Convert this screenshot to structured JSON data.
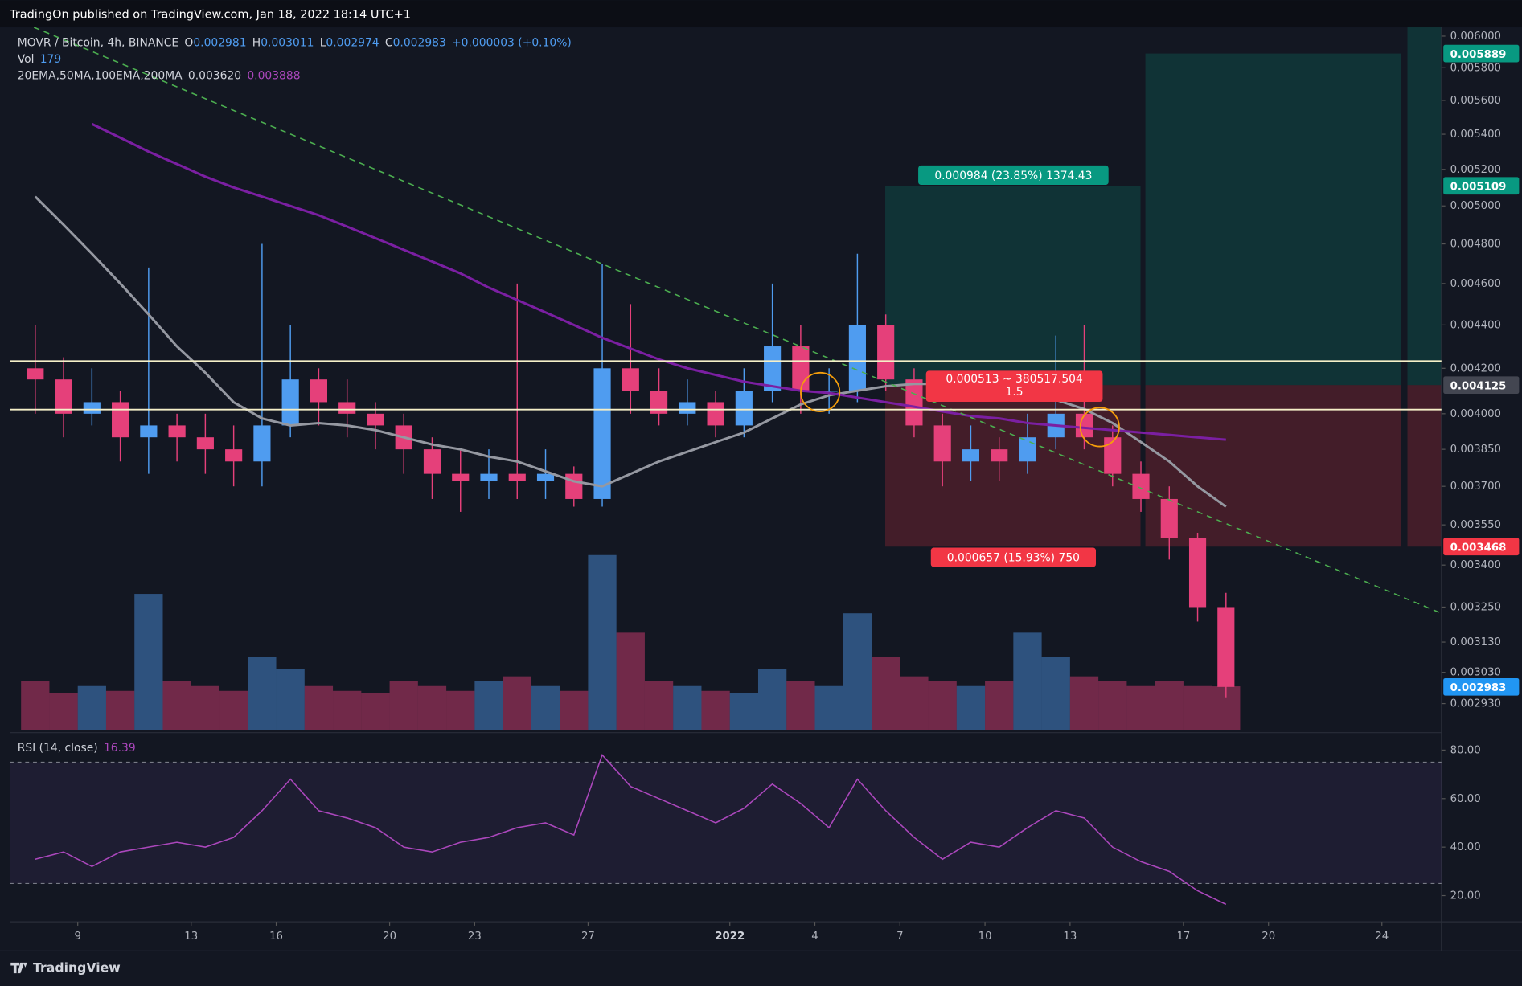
{
  "header": {
    "publisher": "TradingOn published on TradingView.com, Jan 18, 2022 18:14 UTC+1"
  },
  "legend": {
    "symbol": "MOVR / Bitcoin, 4h, BINANCE",
    "ohlc": [
      {
        "key": "O",
        "value": "0.002981"
      },
      {
        "key": "H",
        "value": "0.003011"
      },
      {
        "key": "L",
        "value": "0.002974"
      },
      {
        "key": "C",
        "value": "0.002983"
      }
    ],
    "change": "+0.000003 (+0.10%)",
    "vol_label": "Vol",
    "vol": "179",
    "ma_label": "20EMA,50MA,100EMA,200MA",
    "ma_values": [
      "0.003620",
      "0.003888"
    ],
    "rsi_label": "RSI (14, close)",
    "rsi_value": "16.39"
  },
  "footer": {
    "brand": "TradingView"
  },
  "chart_data": {
    "type": "candlestick",
    "log_scale": true,
    "up_color": "#4f9cf0",
    "down_color": "#e5407a",
    "x": [
      7,
      8,
      9,
      10,
      11,
      12,
      13,
      14,
      15,
      16,
      17,
      18,
      19,
      20,
      21,
      22,
      23,
      24,
      25,
      26,
      27,
      28,
      29,
      30,
      31,
      32,
      33,
      34,
      35,
      36,
      37,
      38,
      39,
      40,
      41,
      42,
      43,
      44,
      45,
      46,
      47,
      48,
      49
    ],
    "candles": [
      [
        0.0042,
        0.0044,
        0.004,
        0.00415
      ],
      [
        0.00415,
        0.00425,
        0.0039,
        0.004
      ],
      [
        0.004,
        0.0042,
        0.00395,
        0.00405
      ],
      [
        0.00405,
        0.0041,
        0.0038,
        0.0039
      ],
      [
        0.0039,
        0.00468,
        0.00375,
        0.00395
      ],
      [
        0.00395,
        0.004,
        0.0038,
        0.0039
      ],
      [
        0.0039,
        0.004,
        0.00375,
        0.00385
      ],
      [
        0.00385,
        0.00395,
        0.0037,
        0.0038
      ],
      [
        0.0038,
        0.0048,
        0.0037,
        0.00395
      ],
      [
        0.00395,
        0.0044,
        0.0039,
        0.00415
      ],
      [
        0.00415,
        0.0042,
        0.00395,
        0.00405
      ],
      [
        0.00405,
        0.00415,
        0.0039,
        0.004
      ],
      [
        0.004,
        0.00405,
        0.00385,
        0.00395
      ],
      [
        0.00395,
        0.004,
        0.00375,
        0.00385
      ],
      [
        0.00385,
        0.0039,
        0.00365,
        0.00375
      ],
      [
        0.00375,
        0.00385,
        0.0036,
        0.00372
      ],
      [
        0.00372,
        0.00385,
        0.00365,
        0.00375
      ],
      [
        0.00375,
        0.0046,
        0.00365,
        0.00372
      ],
      [
        0.00372,
        0.00385,
        0.00365,
        0.00375
      ],
      [
        0.00375,
        0.00378,
        0.00362,
        0.00365
      ],
      [
        0.00365,
        0.0047,
        0.00362,
        0.0042
      ],
      [
        0.0042,
        0.0045,
        0.004,
        0.0041
      ],
      [
        0.0041,
        0.0042,
        0.00395,
        0.004
      ],
      [
        0.004,
        0.00415,
        0.00395,
        0.00405
      ],
      [
        0.00405,
        0.0041,
        0.0039,
        0.00395
      ],
      [
        0.00395,
        0.0042,
        0.0039,
        0.0041
      ],
      [
        0.0041,
        0.0046,
        0.00405,
        0.0043
      ],
      [
        0.0043,
        0.0044,
        0.004,
        0.0041
      ],
      [
        0.0041,
        0.0042,
        0.004,
        0.0041
      ],
      [
        0.0041,
        0.00475,
        0.00405,
        0.0044
      ],
      [
        0.0044,
        0.00445,
        0.0041,
        0.00415
      ],
      [
        0.00415,
        0.0042,
        0.0039,
        0.00395
      ],
      [
        0.00395,
        0.004,
        0.0037,
        0.0038
      ],
      [
        0.0038,
        0.00395,
        0.00372,
        0.00385
      ],
      [
        0.00385,
        0.0039,
        0.00372,
        0.0038
      ],
      [
        0.0038,
        0.004,
        0.00375,
        0.0039
      ],
      [
        0.0039,
        0.00435,
        0.00385,
        0.004
      ],
      [
        0.004,
        0.0044,
        0.00385,
        0.0039
      ],
      [
        0.0039,
        0.00395,
        0.0037,
        0.00375
      ],
      [
        0.00375,
        0.0038,
        0.0036,
        0.00365
      ],
      [
        0.00365,
        0.0037,
        0.00342,
        0.0035
      ],
      [
        0.0035,
        0.00352,
        0.0032,
        0.00325
      ],
      [
        0.00325,
        0.0033,
        0.00295,
        0.002983
      ]
    ],
    "volume": [
      200,
      150,
      180,
      160,
      560,
      200,
      180,
      160,
      300,
      250,
      180,
      160,
      150,
      200,
      180,
      160,
      200,
      220,
      180,
      160,
      720,
      400,
      200,
      180,
      160,
      150,
      250,
      200,
      180,
      480,
      300,
      220,
      200,
      180,
      200,
      400,
      300,
      220,
      200,
      180,
      200,
      180,
      179
    ],
    "vlim": [
      0,
      800
    ],
    "series": [
      {
        "name": "50MA",
        "color": "#9598a1",
        "values": [
          0.00505,
          0.0049,
          0.00475,
          0.0046,
          0.00445,
          0.0043,
          0.00418,
          0.00405,
          0.00398,
          0.00395,
          0.00396,
          0.00395,
          0.00393,
          0.0039,
          0.00387,
          0.00385,
          0.00382,
          0.0038,
          0.00376,
          0.00372,
          0.0037,
          0.00375,
          0.0038,
          0.00384,
          0.00388,
          0.00392,
          0.00398,
          0.00404,
          0.00408,
          0.0041,
          0.00412,
          0.00413,
          0.00413,
          0.00412,
          0.00412,
          0.0041,
          0.00406,
          0.00402,
          0.00396,
          0.00388,
          0.0038,
          0.0037,
          0.00362
        ]
      },
      {
        "name": "200MA",
        "color": "#7b1fa2",
        "values": [
          null,
          null,
          0.00546,
          0.00538,
          0.0053,
          0.00523,
          0.00516,
          0.0051,
          0.00505,
          0.005,
          0.00495,
          0.00489,
          0.00483,
          0.00477,
          0.00471,
          0.00465,
          0.00458,
          0.00452,
          0.00446,
          0.0044,
          0.00434,
          0.00429,
          0.00424,
          0.0042,
          0.00417,
          0.00414,
          0.00412,
          0.0041,
          0.00409,
          0.00407,
          0.00405,
          0.00403,
          0.00401,
          0.00399,
          0.00398,
          0.00396,
          0.00395,
          0.00394,
          0.00393,
          0.00392,
          0.00391,
          0.0039,
          0.00389
        ]
      }
    ],
    "xlim": [
      6.6,
      57.1
    ],
    "xticks": [
      {
        "value": 9,
        "label": "9"
      },
      {
        "value": 13,
        "label": "13"
      },
      {
        "value": 16,
        "label": "16"
      },
      {
        "value": 20,
        "label": "20"
      },
      {
        "value": 23,
        "label": "23"
      },
      {
        "value": 27,
        "label": "27"
      },
      {
        "value": 32,
        "label": "2022"
      },
      {
        "value": 35,
        "label": "4"
      },
      {
        "value": 38,
        "label": "7"
      },
      {
        "value": 41,
        "label": "10"
      },
      {
        "value": 44,
        "label": "13"
      },
      {
        "value": 48,
        "label": "17"
      },
      {
        "value": 51,
        "label": "20"
      },
      {
        "value": 55,
        "label": "24"
      }
    ],
    "ylim": [
      0.002849,
      0.006057
    ],
    "yticks": [
      {
        "value": 0.006,
        "label": "0.006000"
      },
      {
        "value": 0.0058,
        "label": "0.005800"
      },
      {
        "value": 0.0056,
        "label": "0.005600"
      },
      {
        "value": 0.0054,
        "label": "0.005400"
      },
      {
        "value": 0.0052,
        "label": "0.005200"
      },
      {
        "value": 0.005,
        "label": "0.005000"
      },
      {
        "value": 0.0048,
        "label": "0.004800"
      },
      {
        "value": 0.0046,
        "label": "0.004600"
      },
      {
        "value": 0.0044,
        "label": "0.004400"
      },
      {
        "value": 0.0042,
        "label": "0.004200"
      },
      {
        "value": 0.004,
        "label": "0.004000"
      },
      {
        "value": 0.00385,
        "label": "0.003850"
      },
      {
        "value": 0.0037,
        "label": "0.003700"
      },
      {
        "value": 0.00355,
        "label": "0.003550"
      },
      {
        "value": 0.0034,
        "label": "0.003400"
      },
      {
        "value": 0.00325,
        "label": "0.003250"
      },
      {
        "value": 0.00313,
        "label": "0.003130"
      },
      {
        "value": 0.00303,
        "label": "0.003030"
      },
      {
        "value": 0.00293,
        "label": "0.002930"
      }
    ],
    "price_labels": [
      {
        "value": 0.005889,
        "color": "#089981"
      },
      {
        "value": 0.005109,
        "color": "#089981"
      },
      {
        "value": 0.004125,
        "color": "#434651"
      },
      {
        "value": 0.003468,
        "color": "#f23645"
      },
      {
        "value": 0.002983,
        "color": "#2196f3"
      }
    ],
    "position": {
      "entry": 0.004125,
      "target": 0.005109,
      "stop": 0.003468,
      "target2": 0.005889,
      "profit_label": "0.000984 (23.85%) 1374.43",
      "loss_label": "0.000657 (15.93%) 750",
      "info_label": "0.000513 ~ 380517.504",
      "ratio": "1.5"
    },
    "rsi": {
      "color": "#ab47bc",
      "values": [
        35,
        38,
        32,
        38,
        40,
        42,
        40,
        44,
        55,
        68,
        55,
        52,
        48,
        40,
        38,
        42,
        44,
        48,
        50,
        45,
        78,
        65,
        60,
        55,
        50,
        56,
        66,
        58,
        48,
        68,
        55,
        44,
        35,
        42,
        40,
        48,
        55,
        52,
        40,
        34,
        30,
        22,
        16.39
      ],
      "ylim": [
        9.2,
        86.4
      ],
      "bands": [
        75,
        25
      ],
      "yticks": [
        {
          "value": 80,
          "label": "80.00"
        },
        {
          "value": 60,
          "label": "60.00"
        },
        {
          "value": 40,
          "label": "40.00"
        },
        {
          "value": 20,
          "label": "20.00"
        }
      ]
    }
  }
}
